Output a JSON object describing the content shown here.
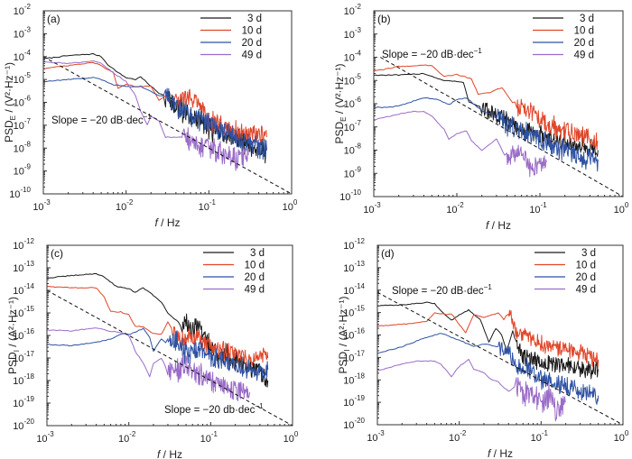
{
  "chart_data": [
    {
      "type": "line",
      "panel": "(a)",
      "title": "",
      "xlabel": "f / Hz",
      "ylabel_main": "PSD",
      "ylabel_sub": "E",
      "ylabel_unit": " / (V²·Hz⁻¹)",
      "xscale": "log",
      "yscale": "log",
      "xlim": [
        0.001,
        1
      ],
      "ylim": [
        1e-10,
        0.01
      ],
      "x_ticks": [
        -3,
        -2,
        -1,
        0
      ],
      "y_ticks": [
        -10,
        -9,
        -8,
        -7,
        -6,
        -5,
        -4,
        -3,
        -2
      ],
      "legend_position": "top-right",
      "annotation": {
        "text": "Slope = −20 dB·dec",
        "sup": "−1",
        "position": "middle-left"
      },
      "slope_line": {
        "x": [
          0.001,
          1
        ],
        "y": [
          0.0001,
          1e-10
        ]
      },
      "series": [
        {
          "name": "3 d",
          "color": "#1a1a1a",
          "x": [
            0.001,
            0.002,
            0.004,
            0.005,
            0.006,
            0.008,
            0.01,
            0.013,
            0.015,
            0.02,
            0.025,
            0.03,
            0.04,
            0.06,
            0.08,
            0.1,
            0.2,
            0.3,
            0.5
          ],
          "y": [
            8e-05,
            0.00011,
            0.00013,
            0.0001,
            4.5e-05,
            2e-05,
            1.2e-05,
            1e-05,
            1.3e-05,
            5e-06,
            2.5e-06,
            2e-06,
            6e-07,
            3e-07,
            1.5e-07,
            8e-08,
            3e-08,
            1.5e-08,
            8e-09
          ],
          "noise_from": 0.03,
          "noise_dec": 0.6
        },
        {
          "name": "10 d",
          "color": "#e0462a",
          "x": [
            0.001,
            0.002,
            0.004,
            0.005,
            0.007,
            0.008,
            0.01,
            0.013,
            0.02,
            0.025,
            0.03,
            0.04,
            0.05,
            0.07,
            0.1,
            0.2,
            0.3,
            0.5
          ],
          "y": [
            3e-05,
            4e-05,
            5.5e-05,
            4e-05,
            2e-05,
            4e-06,
            6e-06,
            5e-06,
            5e-06,
            1.2e-06,
            2e-06,
            1e-06,
            1.5e-06,
            1.5e-06,
            1.5e-07,
            6e-08,
            4e-08,
            3e-08
          ],
          "noise_from": 0.04,
          "noise_dec": 0.55
        },
        {
          "name": "20 d",
          "color": "#2f52a3",
          "x": [
            0.001,
            0.002,
            0.004,
            0.005,
            0.007,
            0.01,
            0.015,
            0.02,
            0.025,
            0.03,
            0.04,
            0.06,
            0.1,
            0.2,
            0.3,
            0.5
          ],
          "y": [
            8e-06,
            1e-05,
            1.2e-05,
            1e-05,
            6e-06,
            5e-06,
            5e-06,
            3e-06,
            2e-06,
            2e-06,
            7e-07,
            3e-07,
            1.2e-07,
            3e-08,
            1.5e-08,
            8e-09
          ],
          "noise_from": 0.03,
          "noise_dec": 0.6
        },
        {
          "name": "49 d",
          "color": "#9a6cc8",
          "x": [
            0.001,
            0.002,
            0.004,
            0.005,
            0.007,
            0.01,
            0.013,
            0.015,
            0.018,
            0.02,
            0.025,
            0.03,
            0.05,
            0.08,
            0.1,
            0.2,
            0.3
          ],
          "y": [
            6e-05,
            5e-05,
            6.5e-05,
            5e-05,
            2e-05,
            8e-06,
            2e-06,
            4e-07,
            1e-07,
            2.5e-07,
            1.5e-07,
            3e-08,
            3e-08,
            1e-08,
            1e-08,
            3e-09,
            5e-09
          ],
          "noise_from": 0.04,
          "noise_dec": 0.6
        }
      ]
    },
    {
      "type": "line",
      "panel": "(b)",
      "title": "",
      "xlabel": "f / Hz",
      "ylabel_main": "PSD",
      "ylabel_sub": "E",
      "ylabel_unit": " / (V²·Hz⁻¹)",
      "xscale": "log",
      "yscale": "log",
      "xlim": [
        0.001,
        1
      ],
      "ylim": [
        1e-10,
        0.01
      ],
      "x_ticks": [
        -3,
        -2,
        -1,
        0
      ],
      "y_ticks": [
        -10,
        -9,
        -8,
        -7,
        -6,
        -5,
        -4,
        -3,
        -2
      ],
      "legend_position": "top-right",
      "annotation": {
        "text": "Slope = −20 dB·dec",
        "sup": "−1",
        "position": "upper-left"
      },
      "slope_line": {
        "x": [
          0.0012,
          1
        ],
        "y": [
          0.0001,
          1e-10
        ]
      },
      "series": [
        {
          "name": "3 d",
          "color": "#1a1a1a",
          "x": [
            0.001,
            0.002,
            0.004,
            0.005,
            0.007,
            0.01,
            0.012,
            0.014,
            0.02,
            0.03,
            0.04,
            0.06,
            0.1,
            0.2,
            0.3,
            0.5
          ],
          "y": [
            1.7e-05,
            1.7e-05,
            2e-05,
            1.5e-05,
            1e-05,
            9e-06,
            8e-06,
            1.2e-06,
            7e-07,
            3e-07,
            2e-07,
            8e-08,
            5e-08,
            2e-08,
            1.5e-08,
            1e-08
          ],
          "noise_from": 0.02,
          "noise_dec": 0.45
        },
        {
          "name": "10 d",
          "color": "#e0462a",
          "x": [
            0.001,
            0.002,
            0.004,
            0.005,
            0.007,
            0.01,
            0.015,
            0.018,
            0.025,
            0.035,
            0.05,
            0.07,
            0.1,
            0.2,
            0.3,
            0.5
          ],
          "y": [
            2.5e-05,
            4e-05,
            4.5e-05,
            4.5e-05,
            1.5e-05,
            1.8e-05,
            1.2e-05,
            2.5e-06,
            3e-06,
            5e-06,
            8e-07,
            6e-07,
            2e-07,
            6e-08,
            4e-08,
            2.5e-08
          ],
          "noise_from": 0.04,
          "noise_dec": 0.5
        },
        {
          "name": "20 d",
          "color": "#2f52a3",
          "x": [
            0.001,
            0.0015,
            0.002,
            0.004,
            0.006,
            0.008,
            0.01,
            0.013,
            0.02,
            0.03,
            0.05,
            0.1,
            0.2,
            0.3,
            0.5
          ],
          "y": [
            7e-07,
            7e-07,
            8e-07,
            1.8e-06,
            1.5e-06,
            9e-07,
            1.5e-06,
            1.8e-06,
            5e-07,
            3e-07,
            8e-08,
            3e-08,
            1e-08,
            5e-09,
            4e-09
          ],
          "noise_from": 0.025,
          "noise_dec": 0.55
        },
        {
          "name": "49 d",
          "color": "#9a6cc8",
          "x": [
            0.001,
            0.002,
            0.003,
            0.004,
            0.005,
            0.007,
            0.008,
            0.01,
            0.013,
            0.015,
            0.02,
            0.03,
            0.04,
            0.06,
            0.08,
            0.1,
            0.12
          ],
          "y": [
            2e-07,
            3.5e-07,
            4.8e-07,
            4.5e-07,
            3e-07,
            8e-08,
            3e-08,
            5e-08,
            7e-08,
            2.5e-08,
            1e-08,
            3e-08,
            4e-09,
            1e-08,
            1.5e-09,
            3e-09,
            3e-09
          ],
          "noise_from": 0.04,
          "noise_dec": 0.5
        }
      ]
    },
    {
      "type": "line",
      "panel": "(c)",
      "title": "",
      "xlabel": "f / Hz",
      "ylabel_main": "PSD",
      "ylabel_sub": "I",
      "ylabel_unit": " / (A²·Hz⁻¹)",
      "xscale": "log",
      "yscale": "log",
      "xlim": [
        0.001,
        1
      ],
      "ylim": [
        1e-20,
        1e-12
      ],
      "x_ticks": [
        -3,
        -2,
        -1,
        0
      ],
      "y_ticks": [
        -20,
        -19,
        -18,
        -17,
        -16,
        -15,
        -14,
        -13,
        -12
      ],
      "legend_position": "top-right",
      "annotation": {
        "text": "Slope = −20 db·dec",
        "sup": "−1",
        "position": "bottom-right"
      },
      "slope_line": {
        "x": [
          0.001,
          1
        ],
        "y": [
          1e-14,
          1e-20
        ]
      },
      "series": [
        {
          "name": "3 d",
          "color": "#1a1a1a",
          "x": [
            0.001,
            0.002,
            0.004,
            0.005,
            0.007,
            0.01,
            0.012,
            0.015,
            0.02,
            0.025,
            0.03,
            0.04,
            0.045,
            0.05,
            0.06,
            0.07,
            0.1,
            0.2,
            0.3,
            0.5
          ],
          "y": [
            3.5e-14,
            4.5e-14,
            5.5e-14,
            4e-14,
            1.5e-14,
            1.2e-14,
            8e-15,
            1.3e-14,
            6e-15,
            3e-15,
            1e-15,
            4e-16,
            2e-16,
            6e-16,
            1.5e-16,
            2e-16,
            3e-17,
            8e-18,
            3e-18,
            1e-18
          ],
          "noise_from": 0.045,
          "noise_dec": 0.6
        },
        {
          "name": "10 d",
          "color": "#e0462a",
          "x": [
            0.001,
            0.002,
            0.004,
            0.005,
            0.006,
            0.008,
            0.01,
            0.012,
            0.015,
            0.02,
            0.025,
            0.03,
            0.035,
            0.04,
            0.05,
            0.07,
            0.1,
            0.2,
            0.3,
            0.5
          ],
          "y": [
            1.5e-14,
            1.3e-14,
            1.3e-14,
            5e-15,
            1.2e-15,
            1.1e-15,
            8e-16,
            2.5e-16,
            2.5e-16,
            1.2e-16,
            1.1e-16,
            4e-16,
            1.5e-16,
            7e-17,
            8e-17,
            7e-17,
            3e-17,
            1.5e-17,
            8e-18,
            1e-17
          ],
          "noise_from": 0.035,
          "noise_dec": 0.5
        },
        {
          "name": "20 d",
          "color": "#2f52a3",
          "x": [
            0.001,
            0.002,
            0.004,
            0.006,
            0.008,
            0.01,
            0.015,
            0.018,
            0.02,
            0.025,
            0.03,
            0.04,
            0.05,
            0.07,
            0.1,
            0.2,
            0.3,
            0.5
          ],
          "y": [
            4e-17,
            3.5e-17,
            5e-17,
            7e-17,
            1.2e-16,
            1.1e-16,
            2e-16,
            8e-17,
            2e-17,
            7e-17,
            4e-17,
            6e-17,
            1.5e-17,
            2e-17,
            1e-17,
            5e-18,
            3e-18,
            3e-18
          ],
          "noise_from": 0.03,
          "noise_dec": 0.55
        },
        {
          "name": "49 d",
          "color": "#9a6cc8",
          "x": [
            0.001,
            0.002,
            0.004,
            0.006,
            0.008,
            0.01,
            0.012,
            0.015,
            0.018,
            0.02,
            0.025,
            0.03,
            0.04,
            0.05,
            0.07,
            0.1,
            0.2,
            0.3
          ],
          "y": [
            1.8e-16,
            1.6e-16,
            2.2e-16,
            1.5e-16,
            1.4e-16,
            1e-16,
            2e-17,
            6e-18,
            1.5e-18,
            6e-18,
            1e-17,
            2.5e-18,
            3e-18,
            5e-18,
            2e-18,
            1e-18,
            4e-19,
            3e-19
          ],
          "noise_from": 0.03,
          "noise_dec": 0.6
        }
      ]
    },
    {
      "type": "line",
      "panel": "(d)",
      "title": "",
      "xlabel": "f / Hz",
      "ylabel_main": "PSD",
      "ylabel_sub": "I",
      "ylabel_unit": " / (A²·Hz⁻¹)",
      "xscale": "log",
      "yscale": "log",
      "xlim": [
        0.001,
        1
      ],
      "ylim": [
        1e-20,
        1e-12
      ],
      "x_ticks": [
        -3,
        -2,
        -1,
        0
      ],
      "y_ticks": [
        -20,
        -19,
        -18,
        -17,
        -16,
        -15,
        -14,
        -13,
        -12
      ],
      "legend_position": "top-right",
      "annotation": {
        "text": "Slope = −20 dB·dec",
        "sup": "−1",
        "position": "upper-left"
      },
      "slope_line": {
        "x": [
          0.001,
          1
        ],
        "y": [
          8e-15,
          1e-20
        ]
      },
      "series": [
        {
          "name": "3 d",
          "color": "#1a1a1a",
          "x": [
            0.001,
            0.002,
            0.004,
            0.005,
            0.006,
            0.008,
            0.01,
            0.013,
            0.018,
            0.023,
            0.028,
            0.033,
            0.038,
            0.045,
            0.05,
            0.06,
            0.08,
            0.1,
            0.2,
            0.3,
            0.5
          ],
          "y": [
            2e-15,
            2.2e-15,
            2.8e-15,
            2.5e-15,
            1.2e-15,
            4.5e-16,
            8e-16,
            1.3e-15,
            5e-16,
            5e-17,
            2e-16,
            1e-16,
            2e-17,
            1.5e-16,
            4e-17,
            1e-17,
            8e-18,
            5e-18,
            5e-18,
            3e-18,
            3e-18
          ],
          "noise_from": 0.05,
          "noise_dec": 0.45
        },
        {
          "name": "10 d",
          "color": "#e0462a",
          "x": [
            0.001,
            0.002,
            0.004,
            0.005,
            0.007,
            0.008,
            0.01,
            0.012,
            0.015,
            0.02,
            0.03,
            0.035,
            0.04,
            0.05,
            0.07,
            0.1,
            0.2,
            0.3,
            0.5
          ],
          "y": [
            2.5e-16,
            3e-16,
            4e-16,
            1e-15,
            8e-16,
            9e-16,
            3e-16,
            1.2e-16,
            8e-16,
            6e-16,
            1e-15,
            5e-16,
            1e-15,
            1.2e-16,
            1e-16,
            4e-17,
            2e-17,
            1.5e-17,
            8e-18
          ],
          "noise_from": 0.04,
          "noise_dec": 0.45
        },
        {
          "name": "20 d",
          "color": "#2f52a3",
          "x": [
            0.001,
            0.002,
            0.004,
            0.006,
            0.008,
            0.01,
            0.015,
            0.02,
            0.03,
            0.04,
            0.05,
            0.07,
            0.1,
            0.2,
            0.3,
            0.5
          ],
          "y": [
            1.5e-17,
            3e-17,
            8e-17,
            1.2e-16,
            8e-17,
            6e-17,
            3e-17,
            4e-17,
            3e-17,
            2e-17,
            4e-18,
            3e-18,
            1e-18,
            5e-19,
            3e-19,
            2e-19
          ],
          "noise_from": 0.03,
          "noise_dec": 0.5
        },
        {
          "name": "49 d",
          "color": "#9a6cc8",
          "x": [
            0.001,
            0.002,
            0.003,
            0.005,
            0.006,
            0.008,
            0.01,
            0.013,
            0.015,
            0.02,
            0.025,
            0.03,
            0.04,
            0.05,
            0.07,
            0.1,
            0.13,
            0.15,
            0.2
          ],
          "y": [
            2.5e-18,
            5e-18,
            7e-18,
            7e-18,
            5e-18,
            1.4e-18,
            4e-18,
            8e-18,
            3e-18,
            2e-18,
            1e-18,
            8e-19,
            3e-19,
            6e-19,
            2e-19,
            1e-19,
            2e-19,
            3e-20,
            1e-19
          ],
          "noise_from": 0.05,
          "noise_dec": 0.7
        }
      ]
    }
  ]
}
